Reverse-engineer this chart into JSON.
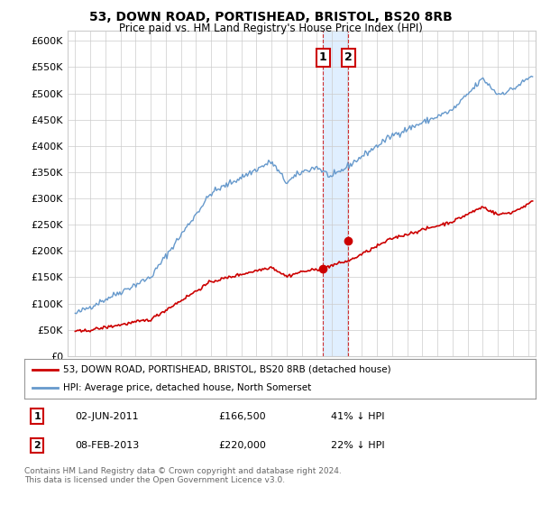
{
  "title": "53, DOWN ROAD, PORTISHEAD, BRISTOL, BS20 8RB",
  "subtitle": "Price paid vs. HM Land Registry's House Price Index (HPI)",
  "ylabel_ticks": [
    "£0",
    "£50K",
    "£100K",
    "£150K",
    "£200K",
    "£250K",
    "£300K",
    "£350K",
    "£400K",
    "£450K",
    "£500K",
    "£550K",
    "£600K"
  ],
  "ylim": [
    0,
    620000
  ],
  "xlim_start": 1994.5,
  "xlim_end": 2025.5,
  "transaction1_date": 2011.42,
  "transaction2_date": 2013.1,
  "transaction1_price": 166500,
  "transaction2_price": 220000,
  "legend_line1": "53, DOWN ROAD, PORTISHEAD, BRISTOL, BS20 8RB (detached house)",
  "legend_line2": "HPI: Average price, detached house, North Somerset",
  "annotation1_label": "1",
  "annotation1_date": "02-JUN-2011",
  "annotation1_price": "£166,500",
  "annotation1_pct": "41% ↓ HPI",
  "annotation2_label": "2",
  "annotation2_date": "08-FEB-2013",
  "annotation2_price": "£220,000",
  "annotation2_pct": "22% ↓ HPI",
  "footer": "Contains HM Land Registry data © Crown copyright and database right 2024.\nThis data is licensed under the Open Government Licence v3.0.",
  "red_color": "#cc0000",
  "blue_color": "#6699cc",
  "shade_color": "#ddeeff",
  "grid_color": "#cccccc",
  "bg_color": "#ffffff"
}
